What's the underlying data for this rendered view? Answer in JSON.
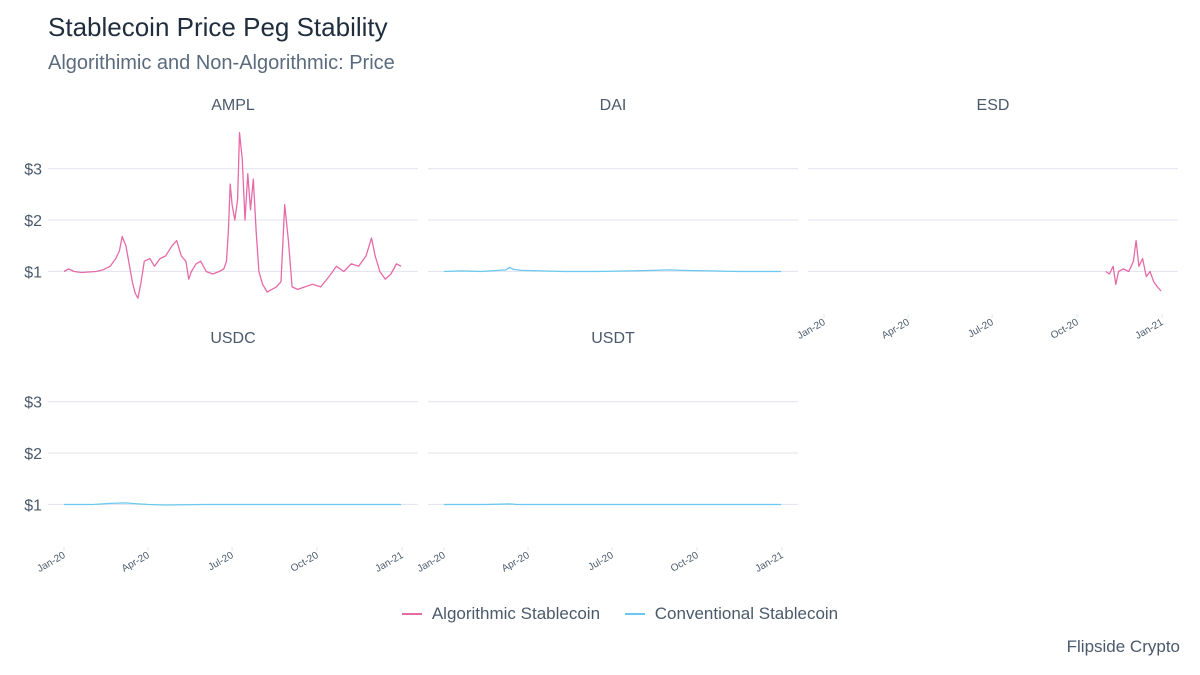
{
  "title": "Stablecoin Price Peg Stability",
  "subtitle": "Algorithimic and Non-Algorithmic: Price",
  "caption": "Flipside Crypto",
  "colors": {
    "algorithmic": "#e56aa8",
    "conventional": "#6cc8ef",
    "grid": "#e3e6ee",
    "text": "#4a5a6b"
  },
  "legend": [
    {
      "label": "Algorithmic Stablecoin",
      "color": "#e56aa8"
    },
    {
      "label": "Conventional Stablecoin",
      "color": "#6cc8ef"
    }
  ],
  "chart_data": {
    "type": "line",
    "facets": true,
    "x_range": [
      "2020-01-01",
      "2021-01-01"
    ],
    "x_ticks": [
      {
        "date": "2020-01-01",
        "label": "Jan-20"
      },
      {
        "date": "2020-04-01",
        "label": "Apr-20"
      },
      {
        "date": "2020-07-01",
        "label": "Jul-20"
      },
      {
        "date": "2020-10-01",
        "label": "Oct-20"
      },
      {
        "date": "2021-01-01",
        "label": "Jan-21"
      }
    ],
    "y_range": [
      0.25,
      3.85
    ],
    "y_ticks": [
      {
        "value": 1,
        "label": "$1"
      },
      {
        "value": 2,
        "label": "$2"
      },
      {
        "value": 3,
        "label": "$3"
      }
    ],
    "grid": true,
    "legend_position": "bottom",
    "panels": [
      {
        "name": "AMPL",
        "category": "algorithmic",
        "points": [
          [
            "2020-01-01",
            1.0
          ],
          [
            "2020-01-06",
            1.05
          ],
          [
            "2020-01-12",
            1.0
          ],
          [
            "2020-01-20",
            0.98
          ],
          [
            "2020-01-28",
            0.99
          ],
          [
            "2020-02-05",
            1.0
          ],
          [
            "2020-02-12",
            1.03
          ],
          [
            "2020-02-20",
            1.1
          ],
          [
            "2020-02-26",
            1.25
          ],
          [
            "2020-03-01",
            1.4
          ],
          [
            "2020-03-04",
            1.68
          ],
          [
            "2020-03-08",
            1.5
          ],
          [
            "2020-03-12",
            1.1
          ],
          [
            "2020-03-15",
            0.8
          ],
          [
            "2020-03-18",
            0.58
          ],
          [
            "2020-03-21",
            0.48
          ],
          [
            "2020-03-24",
            0.75
          ],
          [
            "2020-03-28",
            1.2
          ],
          [
            "2020-04-03",
            1.25
          ],
          [
            "2020-04-08",
            1.1
          ],
          [
            "2020-04-14",
            1.25
          ],
          [
            "2020-04-20",
            1.3
          ],
          [
            "2020-04-27",
            1.5
          ],
          [
            "2020-05-02",
            1.6
          ],
          [
            "2020-05-07",
            1.3
          ],
          [
            "2020-05-12",
            1.2
          ],
          [
            "2020-05-15",
            0.85
          ],
          [
            "2020-05-18",
            1.0
          ],
          [
            "2020-05-23",
            1.15
          ],
          [
            "2020-05-28",
            1.2
          ],
          [
            "2020-06-03",
            1.0
          ],
          [
            "2020-06-10",
            0.95
          ],
          [
            "2020-06-17",
            1.0
          ],
          [
            "2020-06-22",
            1.05
          ],
          [
            "2020-06-25",
            1.2
          ],
          [
            "2020-06-27",
            1.8
          ],
          [
            "2020-06-29",
            2.7
          ],
          [
            "2020-07-01",
            2.3
          ],
          [
            "2020-07-04",
            2.0
          ],
          [
            "2020-07-07",
            2.4
          ],
          [
            "2020-07-09",
            3.7
          ],
          [
            "2020-07-12",
            3.2
          ],
          [
            "2020-07-15",
            2.0
          ],
          [
            "2020-07-18",
            2.9
          ],
          [
            "2020-07-21",
            2.2
          ],
          [
            "2020-07-24",
            2.8
          ],
          [
            "2020-07-27",
            1.8
          ],
          [
            "2020-07-30",
            1.0
          ],
          [
            "2020-08-03",
            0.75
          ],
          [
            "2020-08-08",
            0.6
          ],
          [
            "2020-08-13",
            0.65
          ],
          [
            "2020-08-18",
            0.7
          ],
          [
            "2020-08-23",
            0.8
          ],
          [
            "2020-08-27",
            2.3
          ],
          [
            "2020-08-31",
            1.6
          ],
          [
            "2020-09-04",
            0.7
          ],
          [
            "2020-09-10",
            0.65
          ],
          [
            "2020-09-18",
            0.7
          ],
          [
            "2020-09-26",
            0.75
          ],
          [
            "2020-10-05",
            0.7
          ],
          [
            "2020-10-14",
            0.9
          ],
          [
            "2020-10-22",
            1.1
          ],
          [
            "2020-10-30",
            1.0
          ],
          [
            "2020-11-07",
            1.15
          ],
          [
            "2020-11-15",
            1.1
          ],
          [
            "2020-11-23",
            1.3
          ],
          [
            "2020-11-29",
            1.65
          ],
          [
            "2020-12-03",
            1.3
          ],
          [
            "2020-12-08",
            1.0
          ],
          [
            "2020-12-14",
            0.85
          ],
          [
            "2020-12-20",
            0.95
          ],
          [
            "2020-12-26",
            1.15
          ],
          [
            "2020-12-31",
            1.1
          ]
        ]
      },
      {
        "name": "DAI",
        "category": "conventional",
        "points": [
          [
            "2020-01-01",
            1.0
          ],
          [
            "2020-01-20",
            1.01
          ],
          [
            "2020-02-10",
            1.0
          ],
          [
            "2020-03-08",
            1.03
          ],
          [
            "2020-03-12",
            1.08
          ],
          [
            "2020-03-16",
            1.04
          ],
          [
            "2020-03-25",
            1.02
          ],
          [
            "2020-04-15",
            1.01
          ],
          [
            "2020-05-10",
            1.0
          ],
          [
            "2020-06-15",
            1.0
          ],
          [
            "2020-07-20",
            1.01
          ],
          [
            "2020-08-15",
            1.02
          ],
          [
            "2020-09-01",
            1.03
          ],
          [
            "2020-09-15",
            1.02
          ],
          [
            "2020-10-15",
            1.01
          ],
          [
            "2020-11-15",
            1.0
          ],
          [
            "2020-12-31",
            1.0
          ]
        ]
      },
      {
        "name": "ESD",
        "category": "algorithmic",
        "points": [
          [
            "2020-11-01",
            1.0
          ],
          [
            "2020-11-05",
            0.95
          ],
          [
            "2020-11-09",
            1.1
          ],
          [
            "2020-11-12",
            0.75
          ],
          [
            "2020-11-15",
            1.0
          ],
          [
            "2020-11-20",
            1.05
          ],
          [
            "2020-11-26",
            1.0
          ],
          [
            "2020-12-01",
            1.2
          ],
          [
            "2020-12-04",
            1.6
          ],
          [
            "2020-12-07",
            1.1
          ],
          [
            "2020-12-11",
            1.25
          ],
          [
            "2020-12-15",
            0.9
          ],
          [
            "2020-12-19",
            1.0
          ],
          [
            "2020-12-23",
            0.8
          ],
          [
            "2020-12-27",
            0.7
          ],
          [
            "2020-12-31",
            0.62
          ]
        ]
      },
      {
        "name": "USDC",
        "category": "conventional",
        "points": [
          [
            "2020-01-01",
            1.0
          ],
          [
            "2020-02-01",
            1.0
          ],
          [
            "2020-02-20",
            1.02
          ],
          [
            "2020-03-08",
            1.03
          ],
          [
            "2020-03-14",
            1.02
          ],
          [
            "2020-04-01",
            1.0
          ],
          [
            "2020-04-20",
            0.99
          ],
          [
            "2020-06-01",
            1.0
          ],
          [
            "2020-08-01",
            1.0
          ],
          [
            "2020-10-01",
            1.0
          ],
          [
            "2020-12-31",
            1.0
          ]
        ]
      },
      {
        "name": "USDT",
        "category": "conventional",
        "points": [
          [
            "2020-01-01",
            1.0
          ],
          [
            "2020-02-15",
            1.0
          ],
          [
            "2020-03-12",
            1.01
          ],
          [
            "2020-03-20",
            1.0
          ],
          [
            "2020-05-01",
            1.0
          ],
          [
            "2020-07-01",
            1.0
          ],
          [
            "2020-09-01",
            1.0
          ],
          [
            "2020-11-01",
            1.0
          ],
          [
            "2020-12-31",
            1.0
          ]
        ]
      }
    ]
  }
}
